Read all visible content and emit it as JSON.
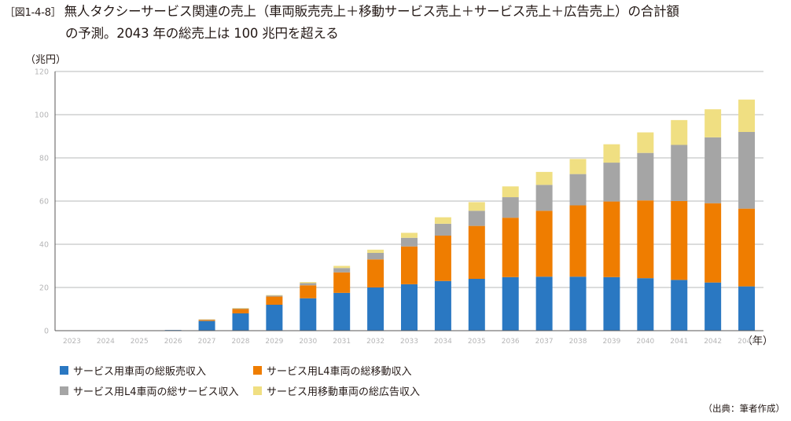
{
  "figure_number": "［図1-4-8］",
  "title_line1": "無人タクシーサービス関連の売上（車両販売売上＋移動サービス売上＋サービス売上＋広告売上）の合計額",
  "title_line2": "の予測。2043 年の総売上は 100 兆円を超える",
  "source": "（出典：筆者作成）",
  "chart_data": {
    "type": "bar",
    "stacked": true,
    "ylabel": "（兆円）",
    "xlabel": "（年）",
    "ylim": [
      0,
      120
    ],
    "yticks": [
      0,
      20,
      40,
      60,
      80,
      100,
      120
    ],
    "grid": true,
    "legend_position": "bottom-left",
    "categories": [
      "2023",
      "2024",
      "2025",
      "2026",
      "2027",
      "2028",
      "2029",
      "2030",
      "2031",
      "2032",
      "2033",
      "2034",
      "2035",
      "2036",
      "2037",
      "2038",
      "2039",
      "2040",
      "2041",
      "2042",
      "2043"
    ],
    "series": [
      {
        "name": "サービス用車両の総販売収入",
        "color": "#2a78c2",
        "values": [
          0,
          0,
          0,
          0.3,
          4.5,
          8,
          12,
          15,
          17.5,
          20,
          21.5,
          23,
          24,
          24.8,
          25,
          25,
          24.8,
          24.3,
          23.5,
          22.3,
          20.5
        ]
      },
      {
        "name": "サービス用L4車両の総移動収入",
        "color": "#ef7d00",
        "values": [
          0,
          0,
          0,
          0,
          0.5,
          2,
          3.8,
          6,
          9.5,
          13,
          17.5,
          21,
          24.5,
          27.5,
          30.5,
          33,
          35,
          36,
          36.5,
          36.7,
          36
        ]
      },
      {
        "name": "サービス用L4車両の総サービス収入",
        "color": "#a5a5a5",
        "values": [
          0,
          0,
          0,
          0,
          0.2,
          0.3,
          0.5,
          1,
          2,
          3,
          4,
          5.5,
          7,
          9.5,
          12,
          14.5,
          18,
          22,
          26,
          30.5,
          35.5
        ]
      },
      {
        "name": "サービス用移動車両の総広告収入",
        "color": "#f0df82",
        "values": [
          0,
          0,
          0,
          0,
          0.1,
          0.2,
          0.2,
          0.5,
          1,
          1.5,
          2.3,
          3,
          4,
          5,
          6,
          7,
          8.5,
          9.5,
          11.5,
          13,
          15
        ]
      }
    ]
  }
}
